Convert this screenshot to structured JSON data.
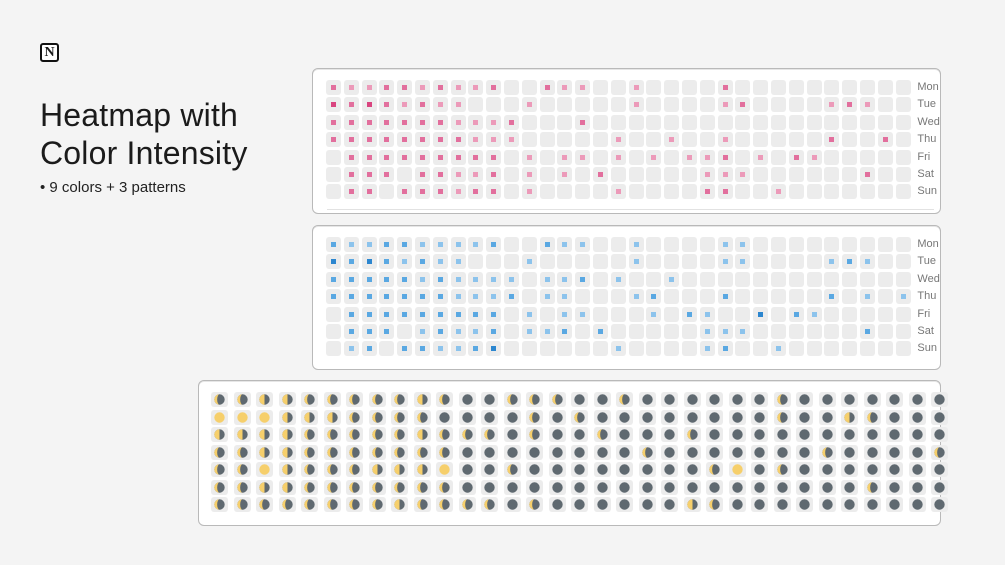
{
  "header": {
    "title_line1": "Heatmap with",
    "title_line2": "Color Intensity",
    "subtitle": "• 9 colors + 3 patterns"
  },
  "colors": {
    "cell_bg": "#ececec",
    "pink": [
      "#ececec",
      "#f2c3d3",
      "#ec9ab9",
      "#e26f9d",
      "#d9447f"
    ],
    "blue": [
      "#ececec",
      "#bcdcf3",
      "#8cc3ec",
      "#5aa8e2",
      "#2c86cf"
    ],
    "moon_dark": "#5f6970",
    "moon_gold": "#f6cf6b"
  },
  "pink_heatmap": {
    "day_labels": [
      "Mon",
      "Tue",
      "Wed",
      "Thu",
      "Fri",
      "Sat",
      "Sun"
    ],
    "rows": [
      [
        3,
        2,
        2,
        3,
        3,
        2,
        3,
        2,
        2,
        3,
        0,
        0,
        3,
        2,
        2,
        0,
        0,
        2,
        0,
        0,
        0,
        0,
        3,
        0,
        0,
        0,
        0,
        0,
        0,
        0,
        0,
        0,
        0
      ],
      [
        4,
        3,
        4,
        3,
        2,
        3,
        2,
        2,
        0,
        0,
        0,
        2,
        0,
        0,
        0,
        0,
        0,
        2,
        0,
        0,
        0,
        0,
        2,
        3,
        0,
        0,
        0,
        0,
        2,
        3,
        2,
        0,
        0
      ],
      [
        3,
        3,
        3,
        3,
        3,
        3,
        3,
        2,
        2,
        2,
        3,
        0,
        0,
        0,
        3,
        0,
        0,
        0,
        0,
        0,
        0,
        0,
        0,
        0,
        0,
        0,
        0,
        0,
        0,
        0,
        0,
        0,
        0
      ],
      [
        3,
        3,
        3,
        3,
        3,
        3,
        3,
        3,
        2,
        2,
        2,
        0,
        0,
        0,
        0,
        0,
        2,
        0,
        0,
        2,
        0,
        0,
        2,
        0,
        0,
        0,
        0,
        0,
        3,
        0,
        0,
        3,
        0
      ],
      [
        0,
        3,
        3,
        3,
        3,
        3,
        3,
        3,
        3,
        3,
        0,
        2,
        0,
        2,
        2,
        0,
        2,
        0,
        2,
        0,
        2,
        2,
        3,
        0,
        2,
        0,
        3,
        2,
        0,
        0,
        0,
        0,
        0
      ],
      [
        0,
        3,
        3,
        3,
        0,
        3,
        3,
        2,
        2,
        3,
        0,
        2,
        0,
        2,
        0,
        3,
        0,
        0,
        0,
        0,
        0,
        2,
        2,
        2,
        0,
        0,
        0,
        0,
        0,
        0,
        3,
        0,
        0
      ],
      [
        0,
        3,
        3,
        0,
        3,
        3,
        3,
        2,
        3,
        3,
        0,
        2,
        0,
        0,
        0,
        0,
        2,
        0,
        0,
        0,
        0,
        3,
        3,
        0,
        0,
        2,
        0,
        0,
        0,
        0,
        0,
        0,
        0
      ]
    ]
  },
  "blue_heatmap": {
    "day_labels": [
      "Mon",
      "Tue",
      "Wed",
      "Thu",
      "Fri",
      "Sat",
      "Sun"
    ],
    "rows": [
      [
        3,
        2,
        2,
        3,
        3,
        2,
        2,
        2,
        2,
        3,
        0,
        0,
        3,
        2,
        2,
        0,
        0,
        2,
        0,
        0,
        0,
        0,
        2,
        2,
        0,
        0,
        0,
        0,
        0,
        0,
        0,
        0,
        0
      ],
      [
        4,
        3,
        4,
        3,
        2,
        3,
        2,
        2,
        0,
        0,
        0,
        2,
        0,
        0,
        0,
        0,
        0,
        2,
        0,
        0,
        0,
        0,
        2,
        2,
        0,
        0,
        0,
        0,
        2,
        3,
        2,
        0,
        0
      ],
      [
        3,
        3,
        3,
        3,
        3,
        2,
        3,
        2,
        2,
        2,
        2,
        0,
        2,
        2,
        3,
        0,
        2,
        0,
        0,
        2,
        0,
        0,
        0,
        0,
        0,
        0,
        0,
        0,
        0,
        0,
        0,
        0,
        0
      ],
      [
        3,
        3,
        3,
        3,
        3,
        3,
        3,
        2,
        2,
        2,
        3,
        0,
        2,
        2,
        0,
        0,
        0,
        2,
        3,
        0,
        0,
        0,
        3,
        0,
        0,
        0,
        0,
        0,
        3,
        0,
        2,
        0,
        2
      ],
      [
        0,
        3,
        3,
        3,
        3,
        3,
        3,
        3,
        3,
        3,
        0,
        2,
        0,
        2,
        2,
        0,
        0,
        0,
        2,
        0,
        3,
        2,
        0,
        0,
        4,
        0,
        3,
        2,
        0,
        0,
        0,
        0,
        0
      ],
      [
        0,
        3,
        3,
        3,
        0,
        2,
        3,
        2,
        2,
        3,
        0,
        2,
        2,
        3,
        0,
        3,
        0,
        0,
        0,
        0,
        0,
        2,
        2,
        2,
        0,
        0,
        0,
        0,
        0,
        0,
        3,
        0,
        0
      ],
      [
        0,
        2,
        3,
        0,
        3,
        3,
        2,
        2,
        3,
        4,
        0,
        0,
        0,
        0,
        0,
        0,
        2,
        0,
        0,
        0,
        0,
        2,
        3,
        0,
        0,
        2,
        0,
        0,
        0,
        0,
        0,
        0,
        0
      ]
    ]
  },
  "moon_heatmap": {
    "rows": [
      [
        2,
        2,
        1,
        1,
        2,
        2,
        2,
        2,
        2,
        1,
        2,
        3,
        3,
        2,
        2,
        2,
        3,
        3,
        2,
        3,
        3,
        3,
        3,
        3,
        3,
        2,
        3,
        3,
        3,
        3,
        3,
        3,
        3
      ],
      [
        0,
        0,
        0,
        1,
        1,
        1,
        2,
        2,
        2,
        2,
        3,
        3,
        3,
        3,
        2,
        3,
        2,
        3,
        3,
        3,
        3,
        3,
        3,
        3,
        3,
        2,
        3,
        3,
        1,
        2,
        3,
        3,
        3
      ],
      [
        1,
        1,
        1,
        1,
        2,
        2,
        2,
        2,
        2,
        1,
        2,
        2,
        2,
        3,
        2,
        3,
        3,
        2,
        3,
        3,
        3,
        2,
        3,
        3,
        3,
        3,
        3,
        3,
        3,
        3,
        3,
        3,
        3
      ],
      [
        2,
        2,
        1,
        1,
        2,
        2,
        2,
        2,
        2,
        2,
        2,
        3,
        3,
        3,
        3,
        3,
        3,
        3,
        3,
        2,
        3,
        3,
        3,
        3,
        3,
        3,
        3,
        2,
        3,
        3,
        3,
        3,
        2
      ],
      [
        2,
        2,
        0,
        1,
        2,
        2,
        2,
        1,
        1,
        1,
        0,
        3,
        3,
        2,
        3,
        3,
        3,
        3,
        3,
        3,
        3,
        3,
        2,
        0,
        3,
        2,
        3,
        3,
        3,
        3,
        3,
        3,
        3
      ],
      [
        2,
        2,
        1,
        1,
        2,
        2,
        2,
        2,
        2,
        2,
        2,
        3,
        3,
        3,
        3,
        3,
        3,
        3,
        3,
        3,
        3,
        3,
        3,
        3,
        3,
        3,
        3,
        3,
        3,
        2,
        3,
        3,
        3
      ],
      [
        2,
        2,
        2,
        2,
        2,
        2,
        2,
        2,
        1,
        2,
        2,
        2,
        2,
        3,
        2,
        3,
        3,
        3,
        3,
        3,
        3,
        1,
        2,
        3,
        3,
        3,
        3,
        3,
        3,
        3,
        3,
        3,
        3
      ]
    ]
  }
}
